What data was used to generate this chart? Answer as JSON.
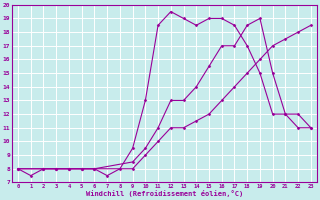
{
  "bg_color": "#c8ecec",
  "line_color": "#990099",
  "grid_color": "#ffffff",
  "xlabel": "Windchill (Refroidissement éolien,°C)",
  "xlim": [
    -0.5,
    23.5
  ],
  "ylim": [
    7,
    20
  ],
  "xticks": [
    0,
    1,
    2,
    3,
    4,
    5,
    6,
    7,
    8,
    9,
    10,
    11,
    12,
    13,
    14,
    15,
    16,
    17,
    18,
    19,
    20,
    21,
    22,
    23
  ],
  "yticks": [
    7,
    8,
    9,
    10,
    11,
    12,
    13,
    14,
    15,
    16,
    17,
    18,
    19,
    20
  ],
  "series": [
    {
      "x": [
        0,
        1,
        2,
        3,
        4,
        5,
        6,
        7,
        8,
        9,
        10,
        11,
        12,
        13,
        14,
        15,
        16,
        17,
        18,
        19,
        20,
        21,
        22,
        23
      ],
      "y": [
        8,
        7.5,
        8,
        8,
        8,
        8,
        8,
        7.5,
        8,
        9.5,
        13,
        18.5,
        19.5,
        19,
        18.5,
        19,
        19,
        18.5,
        17,
        15,
        12,
        12,
        11,
        11
      ]
    },
    {
      "x": [
        0,
        2,
        3,
        4,
        5,
        6,
        9,
        10,
        11,
        12,
        13,
        14,
        15,
        16,
        17,
        18,
        19,
        20,
        21,
        22,
        23
      ],
      "y": [
        8,
        8,
        8,
        8,
        8,
        8,
        8.5,
        9.5,
        11,
        13,
        13,
        14,
        15.5,
        17,
        17,
        18.5,
        19,
        15,
        12,
        12,
        11
      ]
    },
    {
      "x": [
        0,
        2,
        3,
        4,
        5,
        6,
        9,
        10,
        11,
        12,
        13,
        14,
        15,
        16,
        17,
        18,
        19,
        20,
        21,
        22,
        23
      ],
      "y": [
        8,
        8,
        8,
        8,
        8,
        8,
        8,
        9,
        10,
        11,
        11,
        11.5,
        12,
        13,
        14,
        15,
        16,
        17,
        17.5,
        18,
        18.5
      ]
    }
  ]
}
